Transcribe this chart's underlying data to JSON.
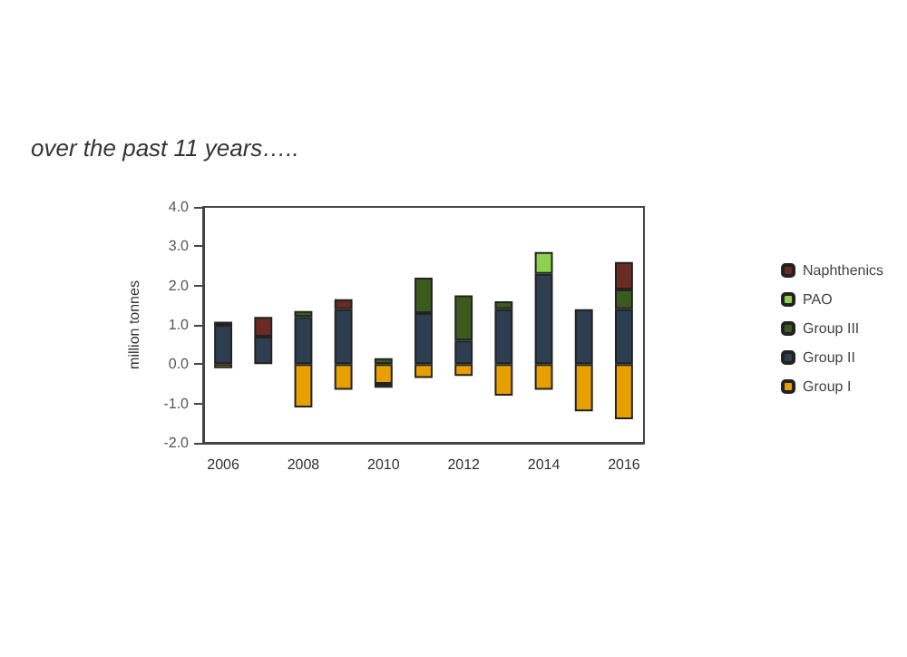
{
  "chart_data": {
    "type": "bar",
    "stacked": true,
    "title": "over the past 11 years…..",
    "ylabel": "million tonnes",
    "categories": [
      "2006",
      null,
      "2008",
      null,
      "2010",
      null,
      "2012",
      null,
      "2014",
      null,
      "2016"
    ],
    "series": [
      {
        "name": "Group I",
        "color": "#e8a000",
        "values": [
          -0.1,
          null,
          -1.1,
          -0.65,
          -0.5,
          -0.35,
          -0.3,
          -0.8,
          -0.65,
          -1.2,
          -1.4
        ]
      },
      {
        "name": "Group II",
        "color": "#2c3e50",
        "values": [
          1.0,
          0.7,
          1.2,
          1.4,
          -0.1,
          1.3,
          0.6,
          1.4,
          2.3,
          1.4,
          1.4
        ]
      },
      {
        "name": "Group III",
        "color": "#3d5a1e",
        "values": [
          0.08,
          null,
          0.15,
          null,
          0.15,
          0.9,
          1.15,
          0.2,
          null,
          null,
          0.5
        ]
      },
      {
        "name": "PAO",
        "color": "#8fd14f",
        "values": [
          null,
          null,
          null,
          null,
          null,
          null,
          null,
          null,
          0.55,
          null,
          null
        ]
      },
      {
        "name": "Naphthenics",
        "color": "#6b2a22",
        "values": [
          null,
          0.5,
          null,
          0.25,
          null,
          null,
          null,
          null,
          null,
          null,
          0.7
        ]
      }
    ],
    "ylim": [
      -2,
      4
    ],
    "yticks": [
      {
        "value": -2,
        "label": "-2.0"
      },
      {
        "value": -1,
        "label": "-1.0"
      },
      {
        "value": 0,
        "label": "0.0"
      },
      {
        "value": 1,
        "label": "1.0"
      },
      {
        "value": 2,
        "label": "2.0"
      },
      {
        "value": 3,
        "label": "3.0"
      },
      {
        "value": 4,
        "label": "4.0"
      }
    ],
    "grid": false,
    "legend": "right"
  }
}
